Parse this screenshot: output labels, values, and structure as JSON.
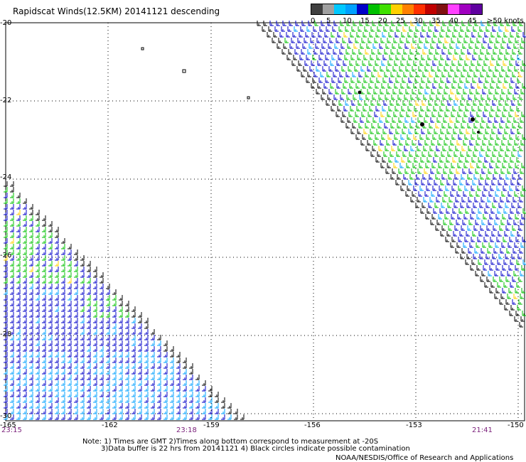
{
  "title": "Rapidscat Winds(12.5KM) 20141121 descending",
  "legend": {
    "labels": [
      "0",
      "5",
      "10",
      "15",
      "20",
      "25",
      "30",
      "35",
      "40",
      "45",
      ">50 knots"
    ],
    "colors": [
      "#404040",
      "#a0a0a0",
      "#00c8ff",
      "#00a0ff",
      "#0000c8",
      "#00c000",
      "#40e000",
      "#ffd000",
      "#ff8000",
      "#ff3000",
      "#c00000",
      "#801010",
      "#ff40ff",
      "#a000c0",
      "#6000a0"
    ]
  },
  "latitudes": [
    "-20",
    "-22",
    "-24",
    "-26",
    "-28",
    "-30"
  ],
  "longitudes": [
    "-165",
    "-162",
    "-159",
    "-156",
    "-153",
    "-150"
  ],
  "times": [
    "23:15",
    "23:18",
    "21:41"
  ],
  "notes": [
    "Note: 1) Times are GMT 2)Times along bottom correspond to measurement at -20S",
    "3)Data buffer is 22 hrs from 20141121 4) Black circles indicate possible contamination"
  ],
  "credit": "NOAA/NESDIS/Office of Research and Applications",
  "barb_colors": {
    "calm": "#000000",
    "light": "#00a0ff",
    "moderate": "#0000c8",
    "fresh": "#00c000",
    "strong": "#ffd000"
  }
}
